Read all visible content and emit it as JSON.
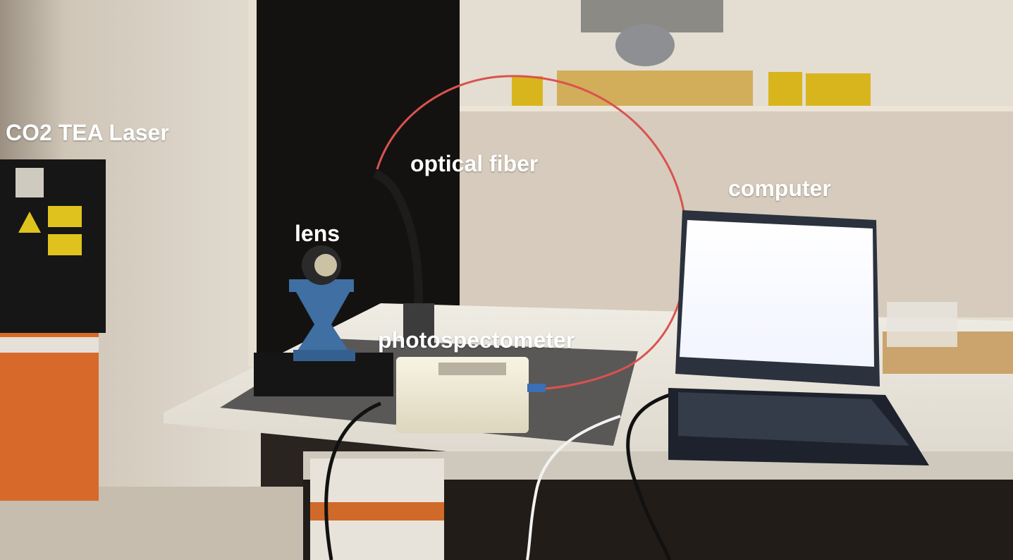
{
  "image": {
    "labels": {
      "laser": "CO2 TEA Laser",
      "fiber": "optical fiber",
      "lens": "lens",
      "computer": "computer",
      "spectrometer": "photospectometer"
    },
    "colors": {
      "label_text": "#ffffff",
      "fiber": "#d9534f",
      "wall": "#d8d0c4",
      "doorway": "#141210",
      "table": "#e9e6dd",
      "laser_body": "#161616",
      "lift_stand": "#3f6fa3",
      "spectrometer_box": "#f1ecd8",
      "laptop_body": "#2b313d",
      "laptop_screen": "#ffffff",
      "yellow_mounts": "#d9b51d"
    }
  }
}
